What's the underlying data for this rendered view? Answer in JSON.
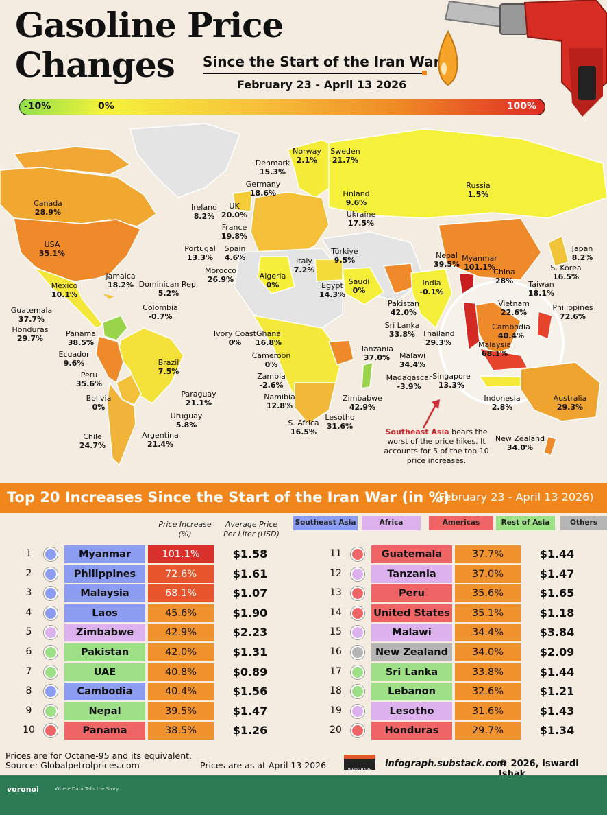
{
  "header": {
    "title_line1": "Gasoline Price",
    "title_line2": "Changes",
    "subtitle": "Since the Start of the Iran War",
    "date_range": "February 23 - April 13 2026",
    "scale_min": "-10%",
    "scale_mid": "0%",
    "scale_max": "100%"
  },
  "colors": {
    "low": "#8ee04a",
    "zero": "#f6f23a",
    "mid": "#f6c23a",
    "high": "#f08a25",
    "max": "#e02a24",
    "nodata": "#e4e4e4",
    "orange": "#f0861c",
    "southeast_asia": "#8c9cf0",
    "africa": "#dcb1ee",
    "americas": "#ef6464",
    "rest_of_asia": "#9ee087",
    "others": "#b5b5b5"
  },
  "map_labels": [
    {
      "name": "Norway",
      "val": "2.1%"
    },
    {
      "name": "Sweden",
      "val": "21.7%"
    },
    {
      "name": "Denmark",
      "val": "15.3%"
    },
    {
      "name": "Germany",
      "val": "18.6%"
    },
    {
      "name": "Finland",
      "val": "9.6%"
    },
    {
      "name": "Russia",
      "val": "1.5%"
    },
    {
      "name": "Canada",
      "val": "28.9%"
    },
    {
      "name": "Ireland",
      "val": "8.2%"
    },
    {
      "name": "UK",
      "val": "20.0%"
    },
    {
      "name": "Ukraine",
      "val": "17.5%"
    },
    {
      "name": "France",
      "val": "19.8%"
    },
    {
      "name": "USA",
      "val": "35.1%"
    },
    {
      "name": "Portugal",
      "val": "13.3%"
    },
    {
      "name": "Spain",
      "val": "4.6%"
    },
    {
      "name": "Türkiye",
      "val": "9.5%"
    },
    {
      "name": "Nepal",
      "val": "39.5%"
    },
    {
      "name": "Myanmar",
      "val": "101.1%"
    },
    {
      "name": "Japan",
      "val": "8.2%"
    },
    {
      "name": "S. Korea",
      "val": "16.5%"
    },
    {
      "name": "Jamaica",
      "val": "18.2%"
    },
    {
      "name": "Morocco",
      "val": "26.9%"
    },
    {
      "name": "Italy",
      "val": "7.2%"
    },
    {
      "name": "China",
      "val": "28%"
    },
    {
      "name": "Mexico",
      "val": "10.1%"
    },
    {
      "name": "Dominican Rep.",
      "val": "5.2%"
    },
    {
      "name": "Algeria",
      "val": "0%"
    },
    {
      "name": "Egypt",
      "val": "14.3%"
    },
    {
      "name": "Saudi",
      "val": "0%"
    },
    {
      "name": "India",
      "val": "-0.1%"
    },
    {
      "name": "Taiwan",
      "val": "18.1%"
    },
    {
      "name": "Vietnam",
      "val": "22.6%"
    },
    {
      "name": "Philippines",
      "val": "72.6%"
    },
    {
      "name": "Guatemala",
      "val": "37.7%"
    },
    {
      "name": "Colombia",
      "val": "-0.7%"
    },
    {
      "name": "Pakistan",
      "val": "42.0%"
    },
    {
      "name": "Honduras",
      "val": "29.7%"
    },
    {
      "name": "Sri Lanka",
      "val": "33.8%"
    },
    {
      "name": "Cambodia",
      "val": "40.4%"
    },
    {
      "name": "Panama",
      "val": "38.5%"
    },
    {
      "name": "Ghana",
      "val": "16.8%"
    },
    {
      "name": "Ivory Coast",
      "val": "0%"
    },
    {
      "name": "Thailand",
      "val": "29.3%"
    },
    {
      "name": "Ecuador",
      "val": "9.6%"
    },
    {
      "name": "Brazil",
      "val": "7.5%"
    },
    {
      "name": "Tanzania",
      "val": "37.0%"
    },
    {
      "name": "Malaysia",
      "val": "68.1%"
    },
    {
      "name": "Cameroon",
      "val": "0%"
    },
    {
      "name": "Malawi",
      "val": "34.4%"
    },
    {
      "name": "Peru",
      "val": "35.6%"
    },
    {
      "name": "Zambia",
      "val": "-2.6%"
    },
    {
      "name": "Madagascar",
      "val": "-3.9%"
    },
    {
      "name": "Singapore",
      "val": "13.3%"
    },
    {
      "name": "Bolivia",
      "val": "0%"
    },
    {
      "name": "Paraguay",
      "val": "21.1%"
    },
    {
      "name": "Namibia",
      "val": "12.8%"
    },
    {
      "name": "Zimbabwe",
      "val": "42.9%"
    },
    {
      "name": "Indonesia",
      "val": "2.8%"
    },
    {
      "name": "Australia",
      "val": "29.3%"
    },
    {
      "name": "Uruguay",
      "val": "5.8%"
    },
    {
      "name": "S. Africa",
      "val": "16.5%"
    },
    {
      "name": "Lesotho",
      "val": "31.6%"
    },
    {
      "name": "Chile",
      "val": "24.7%"
    },
    {
      "name": "Argentina",
      "val": "21.4%"
    },
    {
      "name": "New Zealand",
      "val": "34.0%"
    }
  ],
  "callout": {
    "highlight": "Southeast Asia",
    "text": " bears the worst of the price hikes. It accounts for 5 of the top 10 price increases."
  },
  "table": {
    "title": "Top 20 Increases Since the Start of the Iran War (in %)",
    "date": "(February 23 - April 13 2026)",
    "col_increase": "Price Increase (%)",
    "col_price": "Average Price Per Liter (USD)",
    "legend": [
      "Southeast Asia",
      "Africa",
      "Americas",
      "Rest of Asia",
      "Others"
    ],
    "rows": [
      {
        "rank": "1",
        "country": "Myanmar",
        "region": "southeast_asia",
        "pct": "101.1%",
        "pct_num": 101.1,
        "price": "$1.58"
      },
      {
        "rank": "2",
        "country": "Philippines",
        "region": "southeast_asia",
        "pct": "72.6%",
        "pct_num": 72.6,
        "price": "$1.61"
      },
      {
        "rank": "3",
        "country": "Malaysia",
        "region": "southeast_asia",
        "pct": "68.1%",
        "pct_num": 68.1,
        "price": "$1.07"
      },
      {
        "rank": "4",
        "country": "Laos",
        "region": "southeast_asia",
        "pct": "45.6%",
        "pct_num": 45.6,
        "price": "$1.90"
      },
      {
        "rank": "5",
        "country": "Zimbabwe",
        "region": "africa",
        "pct": "42.9%",
        "pct_num": 42.9,
        "price": "$2.23"
      },
      {
        "rank": "6",
        "country": "Pakistan",
        "region": "rest_of_asia",
        "pct": "42.0%",
        "pct_num": 42.0,
        "price": "$1.31"
      },
      {
        "rank": "7",
        "country": "UAE",
        "region": "rest_of_asia",
        "pct": "40.8%",
        "pct_num": 40.8,
        "price": "$0.89"
      },
      {
        "rank": "8",
        "country": "Cambodia",
        "region": "southeast_asia",
        "pct": "40.4%",
        "pct_num": 40.4,
        "price": "$1.56"
      },
      {
        "rank": "9",
        "country": "Nepal",
        "region": "rest_of_asia",
        "pct": "39.5%",
        "pct_num": 39.5,
        "price": "$1.47"
      },
      {
        "rank": "10",
        "country": "Panama",
        "region": "americas",
        "pct": "38.5%",
        "pct_num": 38.5,
        "price": "$1.26"
      },
      {
        "rank": "11",
        "country": "Guatemala",
        "region": "americas",
        "pct": "37.7%",
        "pct_num": 37.7,
        "price": "$1.44"
      },
      {
        "rank": "12",
        "country": "Tanzania",
        "region": "africa",
        "pct": "37.0%",
        "pct_num": 37.0,
        "price": "$1.47"
      },
      {
        "rank": "13",
        "country": "Peru",
        "region": "americas",
        "pct": "35.6%",
        "pct_num": 35.6,
        "price": "$1.65"
      },
      {
        "rank": "14",
        "country": "United States",
        "region": "americas",
        "pct": "35.1%",
        "pct_num": 35.1,
        "price": "$1.18"
      },
      {
        "rank": "15",
        "country": "Malawi",
        "region": "africa",
        "pct": "34.4%",
        "pct_num": 34.4,
        "price": "$3.84"
      },
      {
        "rank": "16",
        "country": "New Zealand",
        "region": "others",
        "pct": "34.0%",
        "pct_num": 34.0,
        "price": "$2.09"
      },
      {
        "rank": "17",
        "country": "Sri Lanka",
        "region": "rest_of_asia",
        "pct": "33.8%",
        "pct_num": 33.8,
        "price": "$1.44"
      },
      {
        "rank": "18",
        "country": "Lebanon",
        "region": "rest_of_asia",
        "pct": "32.6%",
        "pct_num": 32.6,
        "price": "$1.21"
      },
      {
        "rank": "19",
        "country": "Lesotho",
        "region": "africa",
        "pct": "31.6%",
        "pct_num": 31.6,
        "price": "$1.43"
      },
      {
        "rank": "20",
        "country": "Honduras",
        "region": "americas",
        "pct": "29.7%",
        "pct_num": 29.7,
        "price": "$1.34"
      }
    ]
  },
  "chart_data": {
    "type": "table",
    "title": "Top 20 Increases Since the Start of the Iran War (in %)",
    "categories": [
      "Myanmar",
      "Philippines",
      "Malaysia",
      "Laos",
      "Zimbabwe",
      "Pakistan",
      "UAE",
      "Cambodia",
      "Nepal",
      "Panama",
      "Guatemala",
      "Tanzania",
      "Peru",
      "United States",
      "Malawi",
      "New Zealand",
      "Sri Lanka",
      "Lebanon",
      "Lesotho",
      "Honduras"
    ],
    "series": [
      {
        "name": "Price Increase (%)",
        "values": [
          101.1,
          72.6,
          68.1,
          45.6,
          42.9,
          42.0,
          40.8,
          40.4,
          39.5,
          38.5,
          37.7,
          37.0,
          35.6,
          35.1,
          34.4,
          34.0,
          33.8,
          32.6,
          31.6,
          29.7
        ]
      },
      {
        "name": "Average Price Per Liter (USD)",
        "values": [
          1.58,
          1.61,
          1.07,
          1.9,
          2.23,
          1.31,
          0.89,
          1.56,
          1.47,
          1.26,
          1.44,
          1.47,
          1.65,
          1.18,
          3.84,
          2.09,
          1.44,
          1.21,
          1.43,
          1.34
        ]
      }
    ]
  },
  "footer": {
    "note": "Prices are for Octane-95 and its equivalent.",
    "source": "Source: Globalpetrolprices.com",
    "asof": "Prices are as at April 13 2026",
    "logo": "INFOGRAPH",
    "site": "infograph.substack.com",
    "copyright": "© 2026, Iswardi Ishak",
    "brand": "voronoi",
    "tagline": "Where Data Tells the Story"
  }
}
